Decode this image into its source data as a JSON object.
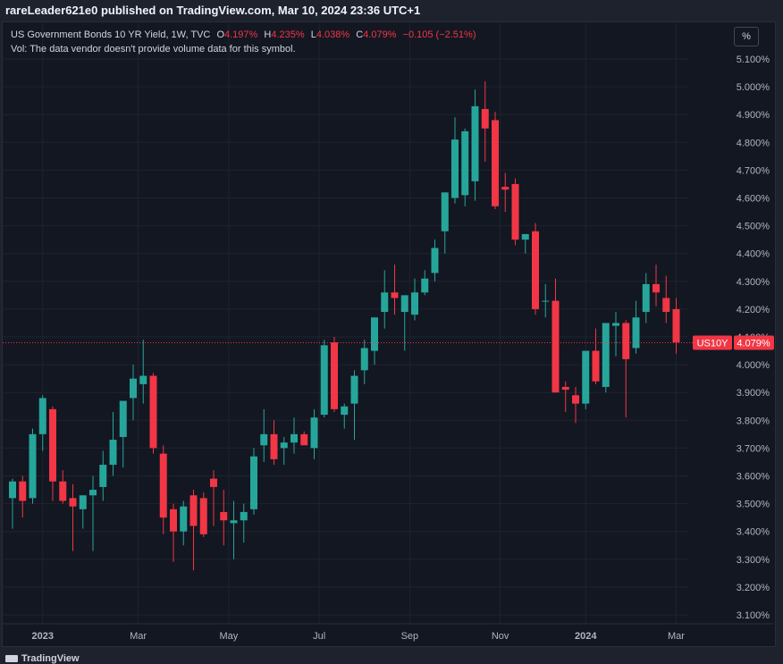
{
  "publisher": "rareLeader621e0 published on TradingView.com, Mar 10, 2024 23:36 UTC+1",
  "legend": {
    "symbol": "US Government Bonds 10 YR Yield, 1W, TVC",
    "open_label": "O",
    "open": "4.197%",
    "high_label": "H",
    "high": "4.235%",
    "low_label": "L",
    "low": "4.038%",
    "close_label": "C",
    "close": "4.079%",
    "change": "−0.105 (−2.51%)",
    "volume_note": "Vol: The data vendor doesn't provide volume data for this symbol."
  },
  "scale_button": "%",
  "price_tag": {
    "symbol": "US10Y",
    "value": "4.079%"
  },
  "footer_brand": "TradingView",
  "colors": {
    "up": "#26a69a",
    "down": "#f23645",
    "background": "#131722",
    "grid": "#2a2e39"
  },
  "chart_data": {
    "type": "candlestick",
    "title": "US Government Bonds 10 YR Yield, 1W, TVC",
    "y_unit": "%",
    "ylim": [
      3.08,
      5.14
    ],
    "y_ticks": [
      "3.100%",
      "3.200%",
      "3.300%",
      "3.400%",
      "3.500%",
      "3.600%",
      "3.700%",
      "3.800%",
      "3.900%",
      "4.000%",
      "4.100%",
      "4.200%",
      "4.300%",
      "4.400%",
      "4.500%",
      "4.600%",
      "4.700%",
      "4.800%",
      "4.900%",
      "5.000%",
      "5.100%"
    ],
    "x_ticks": [
      {
        "label": "2023",
        "index": 3
      },
      {
        "label": "Mar",
        "index": 12.5
      },
      {
        "label": "May",
        "index": 21.5
      },
      {
        "label": "Jul",
        "index": 30.5
      },
      {
        "label": "Sep",
        "index": 39.5
      },
      {
        "label": "Nov",
        "index": 48.5
      },
      {
        "label": "2024",
        "index": 57
      },
      {
        "label": "Mar",
        "index": 66
      }
    ],
    "last_close": 4.079,
    "candles": [
      [
        3.52,
        3.59,
        3.41,
        3.58
      ],
      [
        3.58,
        3.6,
        3.45,
        3.51
      ],
      [
        3.52,
        3.77,
        3.5,
        3.75
      ],
      [
        3.75,
        3.89,
        3.69,
        3.88
      ],
      [
        3.84,
        3.85,
        3.51,
        3.58
      ],
      [
        3.58,
        3.62,
        3.5,
        3.51
      ],
      [
        3.52,
        3.57,
        3.33,
        3.49
      ],
      [
        3.48,
        3.53,
        3.41,
        3.53
      ],
      [
        3.53,
        3.6,
        3.33,
        3.55
      ],
      [
        3.56,
        3.69,
        3.51,
        3.64
      ],
      [
        3.64,
        3.83,
        3.6,
        3.73
      ],
      [
        3.74,
        3.86,
        3.63,
        3.87
      ],
      [
        3.88,
        4.0,
        3.8,
        3.95
      ],
      [
        3.93,
        4.09,
        3.86,
        3.96
      ],
      [
        3.96,
        3.97,
        3.68,
        3.7
      ],
      [
        3.68,
        3.71,
        3.39,
        3.45
      ],
      [
        3.48,
        3.5,
        3.29,
        3.4
      ],
      [
        3.4,
        3.51,
        3.35,
        3.49
      ],
      [
        3.53,
        3.55,
        3.26,
        3.42
      ],
      [
        3.52,
        3.54,
        3.38,
        3.39
      ],
      [
        3.59,
        3.62,
        3.42,
        3.56
      ],
      [
        3.47,
        3.55,
        3.35,
        3.44
      ],
      [
        3.43,
        3.51,
        3.3,
        3.44
      ],
      [
        3.44,
        3.5,
        3.36,
        3.47
      ],
      [
        3.48,
        3.7,
        3.46,
        3.67
      ],
      [
        3.71,
        3.84,
        3.65,
        3.75
      ],
      [
        3.75,
        3.8,
        3.64,
        3.66
      ],
      [
        3.7,
        3.74,
        3.64,
        3.72
      ],
      [
        3.72,
        3.81,
        3.68,
        3.75
      ],
      [
        3.75,
        3.76,
        3.71,
        3.71
      ],
      [
        3.7,
        3.84,
        3.66,
        3.81
      ],
      [
        3.82,
        4.09,
        3.81,
        4.07
      ],
      [
        4.08,
        4.1,
        3.83,
        3.84
      ],
      [
        3.82,
        3.86,
        3.77,
        3.85
      ],
      [
        3.86,
        3.98,
        3.73,
        3.96
      ],
      [
        3.98,
        4.09,
        3.93,
        4.06
      ],
      [
        4.05,
        4.17,
        4.0,
        4.17
      ],
      [
        4.19,
        4.34,
        4.13,
        4.26
      ],
      [
        4.26,
        4.36,
        4.18,
        4.24
      ],
      [
        4.19,
        4.24,
        4.05,
        4.25
      ],
      [
        4.18,
        4.31,
        4.16,
        4.26
      ],
      [
        4.26,
        4.34,
        4.25,
        4.31
      ],
      [
        4.33,
        4.45,
        4.3,
        4.42
      ],
      [
        4.48,
        4.61,
        4.4,
        4.62
      ],
      [
        4.6,
        4.89,
        4.58,
        4.81
      ],
      [
        4.61,
        4.85,
        4.57,
        4.84
      ],
      [
        4.66,
        4.99,
        4.59,
        4.93
      ],
      [
        4.92,
        5.02,
        4.73,
        4.85
      ],
      [
        4.88,
        4.91,
        4.56,
        4.57
      ],
      [
        4.64,
        4.69,
        4.55,
        4.63
      ],
      [
        4.65,
        4.67,
        4.43,
        4.45
      ],
      [
        4.45,
        4.47,
        4.4,
        4.47
      ],
      [
        4.48,
        4.51,
        4.18,
        4.2
      ],
      [
        4.23,
        4.29,
        4.17,
        4.23
      ],
      [
        4.23,
        4.31,
        3.92,
        3.9
      ],
      [
        3.92,
        3.94,
        3.83,
        3.91
      ],
      [
        3.89,
        3.92,
        3.79,
        3.86
      ],
      [
        3.86,
        4.05,
        3.84,
        4.05
      ],
      [
        4.05,
        4.13,
        3.93,
        3.94
      ],
      [
        3.92,
        4.15,
        3.9,
        4.15
      ],
      [
        4.14,
        4.19,
        4.03,
        4.15
      ],
      [
        4.15,
        4.16,
        3.81,
        4.02
      ],
      [
        4.06,
        4.23,
        4.04,
        4.17
      ],
      [
        4.19,
        4.33,
        4.15,
        4.29
      ],
      [
        4.29,
        4.36,
        4.21,
        4.26
      ],
      [
        4.24,
        4.32,
        4.15,
        4.19
      ],
      [
        4.2,
        4.24,
        4.04,
        4.08
      ]
    ]
  }
}
